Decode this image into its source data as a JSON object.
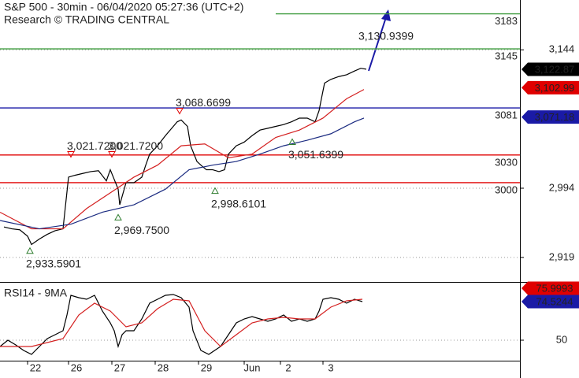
{
  "chart_data": [
    {
      "type": "line",
      "title": "S&P 500 - 30min - 06/04/2020 05:27:36 (UTC+2)",
      "subtitle": "Research © TRADING CENTRAL",
      "xlim": [
        0,
        660
      ],
      "ylim": [
        2895,
        3198
      ],
      "yticks": [
        {
          "value": 3144,
          "label": "3,144"
        },
        {
          "value": 2994,
          "label": "2,994"
        },
        {
          "value": 2919,
          "label": "2,919"
        }
      ],
      "grid": true,
      "series": [
        {
          "color": "#000000",
          "x": [
            5,
            15,
            25,
            35,
            40,
            50,
            60,
            70,
            80,
            87,
            95,
            105,
            115,
            125,
            135,
            140,
            150,
            152,
            160,
            170,
            180,
            185,
            190,
            200,
            210,
            220,
            225,
            230,
            238,
            242,
            250,
            255,
            262,
            270,
            278,
            285,
            290,
            300,
            310,
            320,
            330,
            340,
            350,
            360,
            370,
            380,
            390,
            400,
            405,
            408,
            412,
            420,
            430,
            440,
            450,
            458,
            465
          ],
          "values": [
            2952,
            2950,
            2949,
            2942,
            2933,
            2939,
            2944,
            2948,
            2950,
            3006,
            3008,
            3010,
            3012,
            3013,
            3002,
            3014,
            2993,
            2976,
            3000,
            3000,
            3006,
            3019,
            3031,
            3040,
            3051,
            3061,
            3066,
            3068,
            3061,
            3040,
            3023,
            3019,
            3014,
            3014,
            3012,
            3014,
            3031,
            3040,
            3044,
            3051,
            3057,
            3059,
            3061,
            3063,
            3066,
            3070,
            3070,
            3066,
            3078,
            3091,
            3108,
            3112,
            3115,
            3117,
            3121,
            3124,
            3123
          ]
        },
        {
          "color": "#d42020",
          "x": [
            0,
            40,
            80,
            110,
            140,
            170,
            200,
            230,
            260,
            290,
            320,
            350,
            380,
            410,
            440,
            462
          ],
          "values": [
            2968,
            2950,
            2950,
            2972,
            2989,
            3006,
            3019,
            3040,
            3042,
            3027,
            3031,
            3049,
            3057,
            3070,
            3091,
            3101
          ]
        },
        {
          "color": "#1a2a80",
          "x": [
            0,
            50,
            90,
            130,
            170,
            210,
            240,
            270,
            300,
            330,
            360,
            390,
            420,
            450,
            462
          ],
          "values": [
            2959,
            2950,
            2955,
            2968,
            2976,
            2993,
            3014,
            3019,
            3023,
            3031,
            3040,
            3046,
            3053,
            3066,
            3070
          ]
        }
      ],
      "levels": [
        {
          "value": 3183,
          "color": "#3a9a3a",
          "start": 350
        },
        {
          "value": 3145,
          "color": "#3a9a3a"
        },
        {
          "value": 3081,
          "color": "#1a1aa6"
        },
        {
          "value": 3030,
          "color": "#e00000"
        },
        {
          "value": 3000,
          "color": "#e00000"
        }
      ],
      "annotations": [
        {
          "x": 460,
          "value": 3130.9399,
          "label": "3,130.9399"
        },
        {
          "x": 228,
          "value": 3068.6699,
          "label": "3,068.6699",
          "marker": "high"
        },
        {
          "x": 90,
          "value": 3021.72,
          "label": "3,021.7200",
          "marker": "high"
        },
        {
          "x": 142,
          "value": 3021.72,
          "label": "3,021.7200",
          "marker": "high"
        },
        {
          "x": 371,
          "value": 3051.6399,
          "label": "3,051.6399",
          "marker": "low"
        },
        {
          "x": 273,
          "value": 2998.6101,
          "label": "2,998.6101",
          "marker": "low"
        },
        {
          "x": 150,
          "value": 2969.75,
          "label": "2,969.7500",
          "marker": "low"
        },
        {
          "x": 38,
          "value": 2933.5901,
          "label": "2,933.5901",
          "marker": "low"
        }
      ],
      "tags": [
        {
          "value": 3122.87,
          "label": "3,122.87",
          "color": "#000000"
        },
        {
          "value": 3102.99,
          "label": "3,102.99",
          "color": "#e00000"
        },
        {
          "value": 3071.18,
          "label": "3,071.18",
          "color": "#1a1aa6"
        }
      ]
    },
    {
      "type": "line",
      "title": "RSI14 - 9MA",
      "xlim": [
        0,
        660
      ],
      "ylim": [
        37,
        86
      ],
      "yticks": [
        50
      ],
      "grid": true,
      "xticks": [
        {
          "value": 45,
          "label": "22"
        },
        {
          "value": 97,
          "label": "26"
        },
        {
          "value": 152,
          "label": "27"
        },
        {
          "value": 207,
          "label": "28"
        },
        {
          "value": 262,
          "label": "29"
        },
        {
          "value": 320,
          "label": "Jun"
        },
        {
          "value": 366,
          "label": "2"
        },
        {
          "value": 420,
          "label": "3"
        }
      ],
      "series": [
        {
          "color": "#000000",
          "x": [
            0,
            10,
            20,
            30,
            40,
            50,
            60,
            70,
            80,
            85,
            90,
            100,
            110,
            120,
            130,
            140,
            145,
            150,
            155,
            160,
            170,
            180,
            190,
            200,
            210,
            220,
            230,
            240,
            245,
            255,
            265,
            280,
            290,
            300,
            310,
            320,
            330,
            340,
            350,
            360,
            370,
            380,
            390,
            400,
            405,
            410,
            420,
            430,
            440,
            450,
            460
          ],
          "values": [
            46,
            50,
            47,
            43.5,
            41,
            46,
            51,
            53.5,
            56,
            66,
            78.5,
            77,
            76,
            78.5,
            68.5,
            61,
            56,
            46,
            53.5,
            56,
            56,
            63.5,
            73.5,
            76,
            78.5,
            79,
            77,
            71,
            56,
            43.5,
            41,
            46,
            53.5,
            61,
            63.5,
            65,
            63.5,
            62,
            63.5,
            66,
            62,
            63.5,
            62,
            63.5,
            68.5,
            76,
            77,
            76,
            73.5,
            76,
            74.5
          ]
        },
        {
          "color": "#d42020",
          "x": [
            0,
            40,
            80,
            100,
            120,
            140,
            160,
            180,
            200,
            220,
            240,
            260,
            280,
            300,
            320,
            340,
            360,
            380,
            400,
            420,
            440,
            460
          ],
          "values": [
            46,
            46,
            51,
            66,
            73.5,
            68.5,
            58.5,
            61,
            70,
            76,
            75,
            56,
            46,
            53.5,
            61,
            63.5,
            64.5,
            63.5,
            63.5,
            71,
            75,
            76
          ]
        }
      ],
      "tags": [
        {
          "value": 75.9993,
          "color": "#e00000"
        },
        {
          "value": 74.5244,
          "color": "#1a1aa6"
        }
      ]
    }
  ]
}
